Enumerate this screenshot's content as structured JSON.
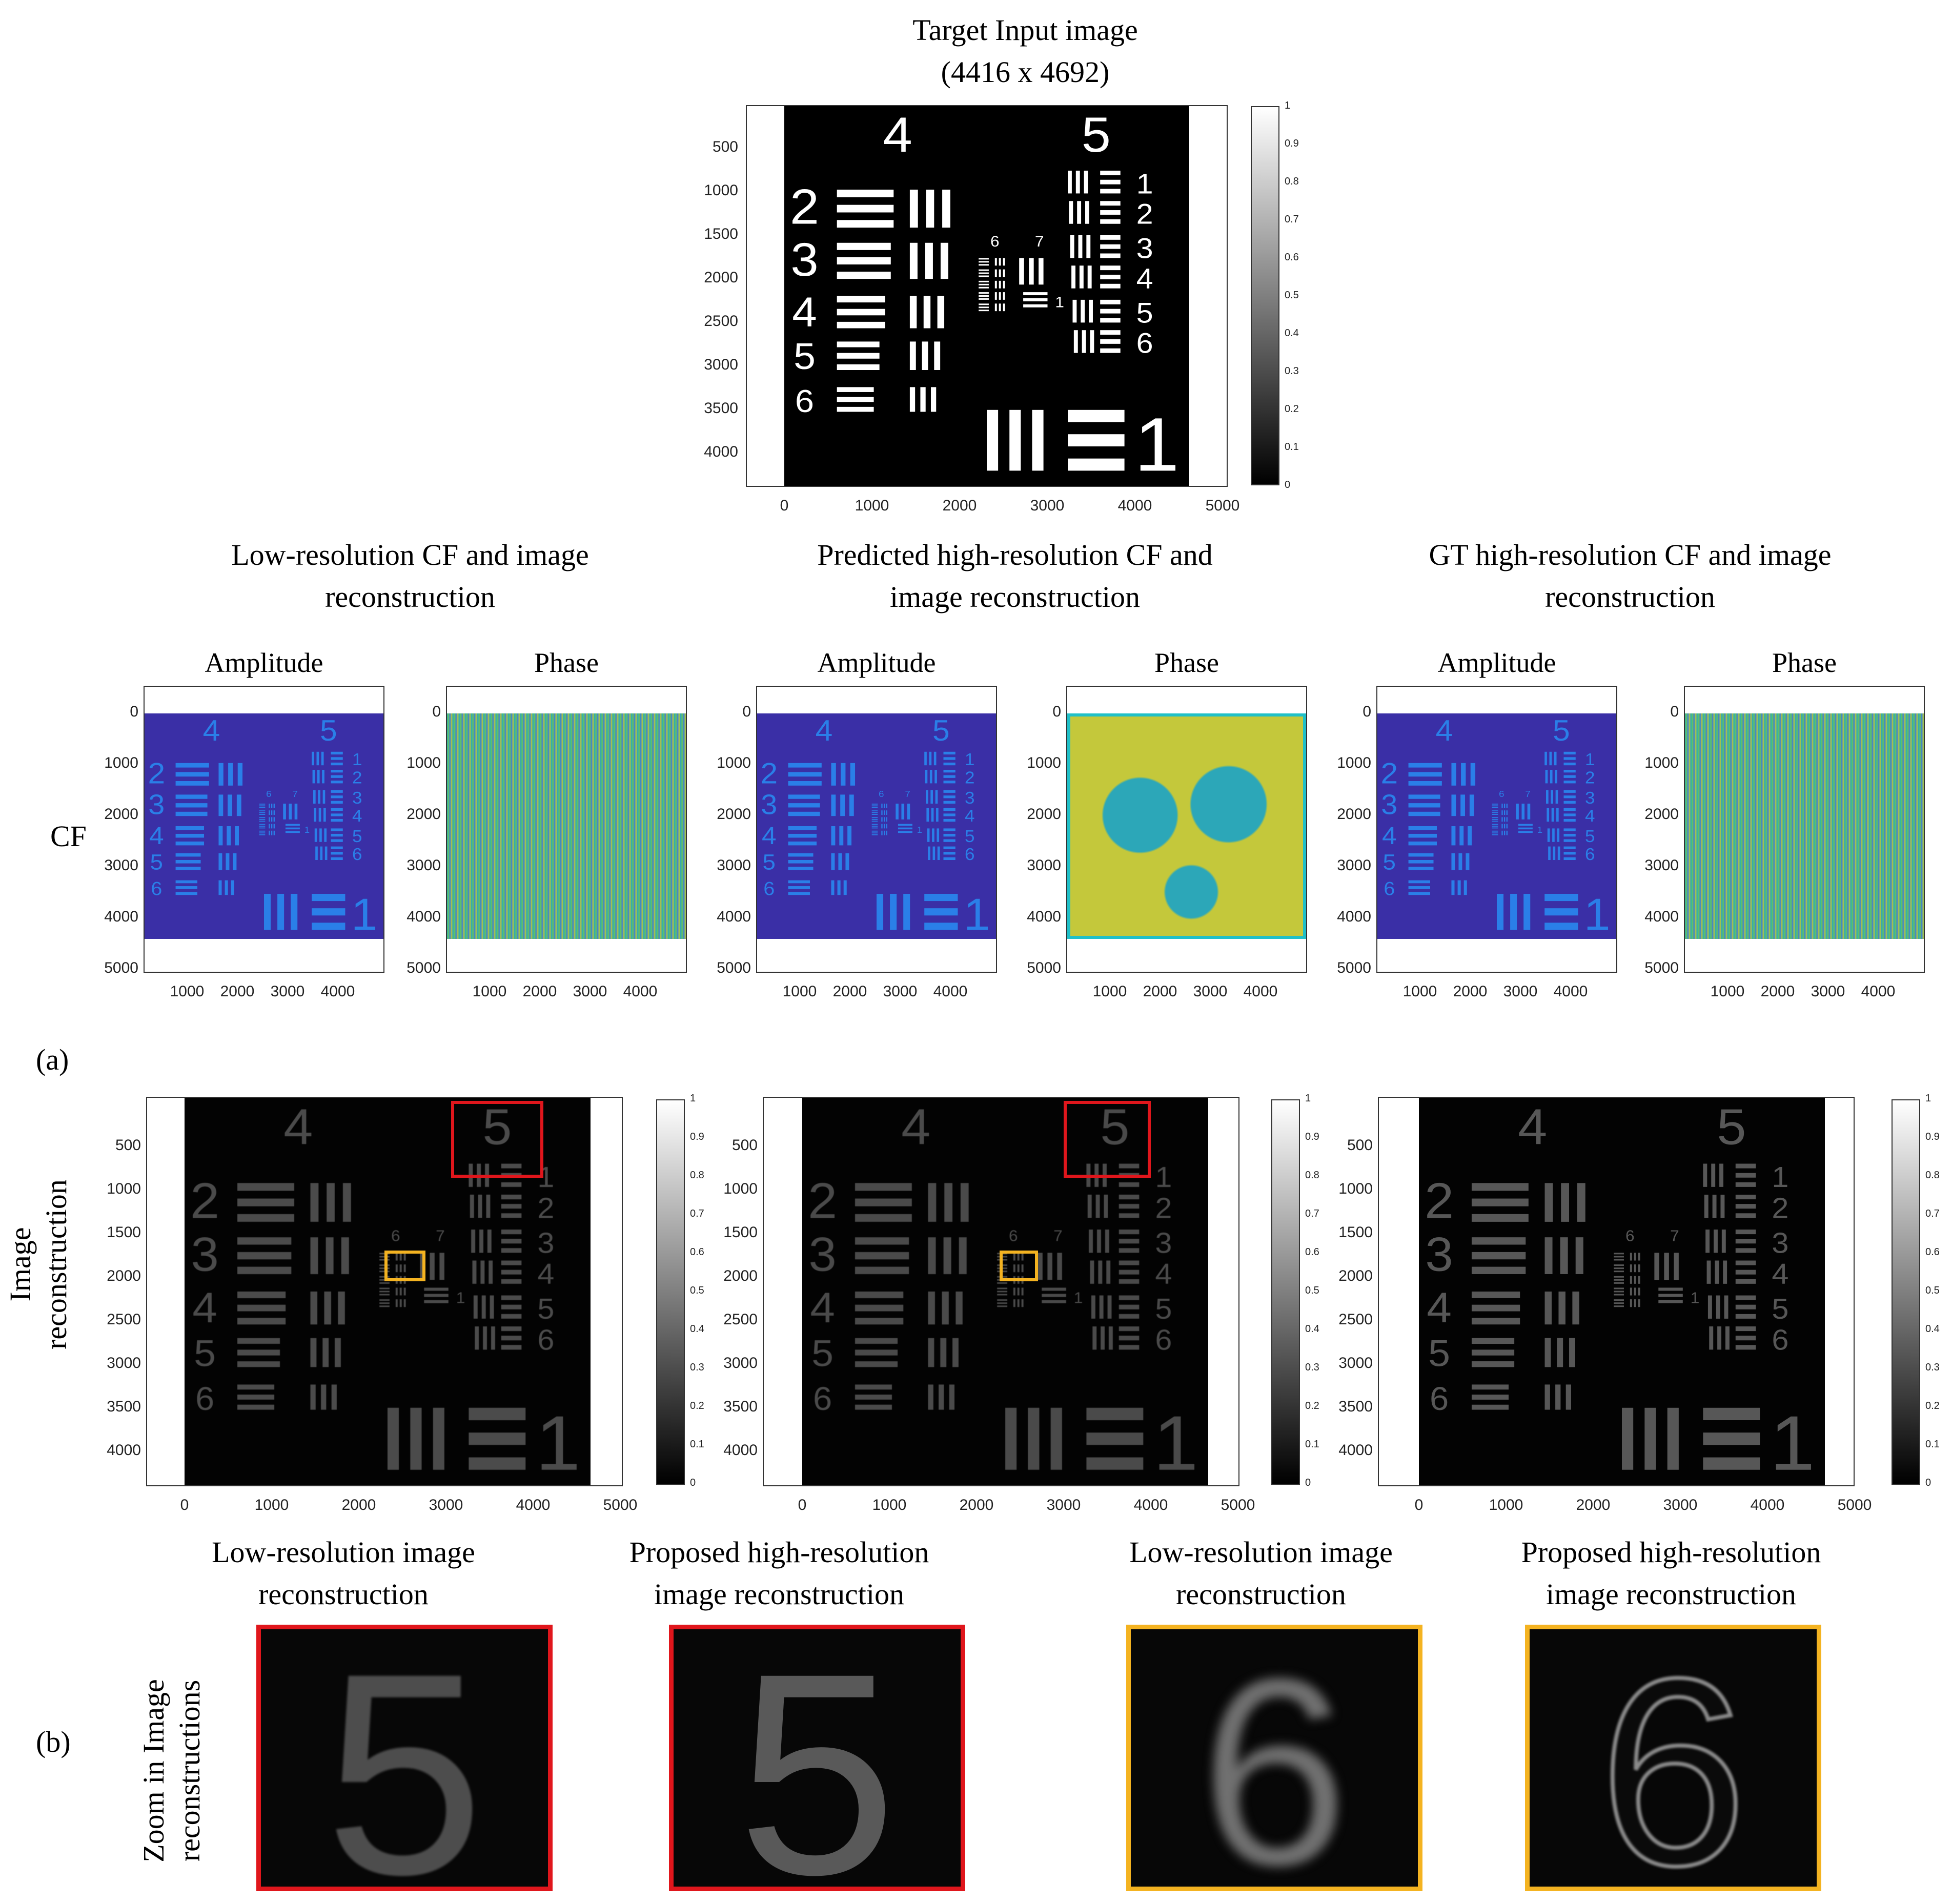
{
  "target": {
    "title_line1": "Target Input image",
    "title_line2": "(4416 x 4692)",
    "yticks": [
      "500",
      "1000",
      "1500",
      "2000",
      "2500",
      "3000",
      "3500",
      "4000"
    ],
    "xticks": [
      "0",
      "1000",
      "2000",
      "3000",
      "4000",
      "5000"
    ],
    "cbticks": [
      "1",
      "0.9",
      "0.8",
      "0.7",
      "0.6",
      "0.5",
      "0.4",
      "0.3",
      "0.2",
      "0.1",
      "0"
    ],
    "pattern_digits": {
      "big_left": "4",
      "big_right": "5",
      "groups_left": [
        "2",
        "3",
        "4",
        "5",
        "6"
      ],
      "groups_right": [
        "1",
        "2",
        "3",
        "4",
        "5",
        "6"
      ],
      "center_a": "6",
      "center_b": "7",
      "bottom": "1"
    }
  },
  "sections": [
    {
      "line1": "Low-resolution  CF and image",
      "line2": "reconstruction"
    },
    {
      "line1": "Predicted high-resolution  CF and",
      "line2": "image  reconstruction"
    },
    {
      "line1": "GT high-resolution  CF and image",
      "line2": "reconstruction"
    }
  ],
  "cf": {
    "row_label": "CF",
    "amplitude_title": "Amplitude",
    "phase_title": "Phase",
    "yticks": [
      "0",
      "1000",
      "2000",
      "3000",
      "4000",
      "5000"
    ],
    "xticks": [
      "1000",
      "2000",
      "3000",
      "4000"
    ]
  },
  "label_a": "(a)",
  "label_b": "(b)",
  "recon": {
    "row_label_line1": "Image",
    "row_label_line2": "reconstruction",
    "yticks": [
      "500",
      "1000",
      "1500",
      "2000",
      "2500",
      "3000",
      "3500",
      "4000"
    ],
    "xticks": [
      "0",
      "1000",
      "2000",
      "3000",
      "4000",
      "5000"
    ],
    "cbticks": [
      "1",
      "0.9",
      "0.8",
      "0.7",
      "0.6",
      "0.5",
      "0.4",
      "0.3",
      "0.2",
      "0.1",
      "0"
    ]
  },
  "zoom": {
    "row_label_line1": "Zoom in Image",
    "row_label_line2": "reconstructions",
    "captions": [
      {
        "line1": "Low-resolution  image",
        "line2": "reconstruction"
      },
      {
        "line1": "Proposed high-resolution",
        "line2": "image  reconstruction"
      },
      {
        "line1": "Low-resolution  image",
        "line2": "reconstruction"
      },
      {
        "line1": "Proposed high-resolution",
        "line2": "image  reconstruction"
      }
    ],
    "digits": [
      "5",
      "5",
      "6",
      "6"
    ],
    "colors": {
      "red": "#e0161c",
      "yellow": "#f4b321"
    }
  },
  "colors": {
    "parula_bg": "#3a2fa6",
    "parula_fg": "#2a7fe8",
    "phase_yellow": "#c7c83a"
  }
}
